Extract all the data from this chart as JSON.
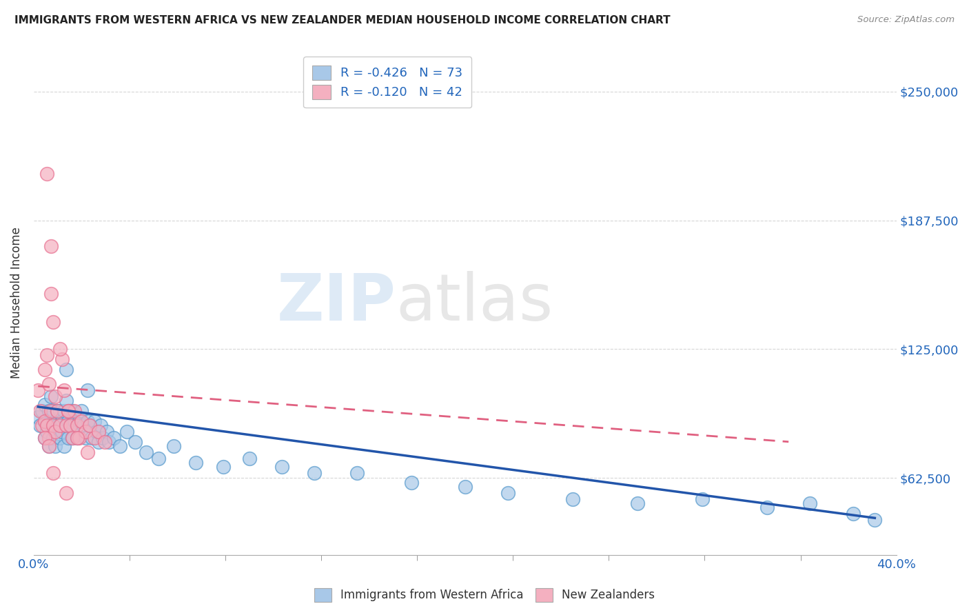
{
  "title": "IMMIGRANTS FROM WESTERN AFRICA VS NEW ZEALANDER MEDIAN HOUSEHOLD INCOME CORRELATION CHART",
  "source": "Source: ZipAtlas.com",
  "ylabel": "Median Household Income",
  "ytick_labels": [
    "$62,500",
    "$125,000",
    "$187,500",
    "$250,000"
  ],
  "ytick_values": [
    62500,
    125000,
    187500,
    250000
  ],
  "ylim": [
    25000,
    270000
  ],
  "xlim": [
    0.0,
    0.4
  ],
  "watermark_zip": "ZIP",
  "watermark_atlas": "atlas",
  "legend_r1": "R = -0.426",
  "legend_n1": "N = 73",
  "legend_r2": "R = -0.120",
  "legend_n2": "N = 42",
  "blue_color": "#a8c8e8",
  "pink_color": "#f4b0c0",
  "blue_edge_color": "#5599cc",
  "pink_edge_color": "#e87090",
  "blue_line_color": "#2255aa",
  "pink_line_color": "#e06080",
  "background_color": "#ffffff",
  "scatter_blue_x": [
    0.002,
    0.003,
    0.004,
    0.005,
    0.005,
    0.006,
    0.006,
    0.007,
    0.007,
    0.008,
    0.008,
    0.009,
    0.009,
    0.01,
    0.01,
    0.011,
    0.011,
    0.012,
    0.012,
    0.013,
    0.013,
    0.014,
    0.014,
    0.015,
    0.015,
    0.016,
    0.016,
    0.017,
    0.017,
    0.018,
    0.018,
    0.019,
    0.02,
    0.02,
    0.021,
    0.022,
    0.023,
    0.024,
    0.025,
    0.026,
    0.027,
    0.028,
    0.029,
    0.03,
    0.031,
    0.032,
    0.034,
    0.035,
    0.037,
    0.04,
    0.043,
    0.047,
    0.052,
    0.058,
    0.065,
    0.075,
    0.088,
    0.1,
    0.115,
    0.13,
    0.15,
    0.175,
    0.2,
    0.22,
    0.25,
    0.28,
    0.31,
    0.34,
    0.36,
    0.38,
    0.39,
    0.015,
    0.025
  ],
  "scatter_blue_y": [
    92000,
    88000,
    95000,
    82000,
    98000,
    90000,
    85000,
    95000,
    78000,
    102000,
    88000,
    82000,
    95000,
    90000,
    78000,
    95000,
    88000,
    82000,
    95000,
    90000,
    85000,
    78000,
    95000,
    88000,
    100000,
    82000,
    90000,
    95000,
    88000,
    82000,
    95000,
    90000,
    88000,
    82000,
    90000,
    95000,
    88000,
    82000,
    90000,
    88000,
    82000,
    90000,
    85000,
    80000,
    88000,
    82000,
    85000,
    80000,
    82000,
    78000,
    85000,
    80000,
    75000,
    72000,
    78000,
    70000,
    68000,
    72000,
    68000,
    65000,
    65000,
    60000,
    58000,
    55000,
    52000,
    50000,
    52000,
    48000,
    50000,
    45000,
    42000,
    115000,
    105000
  ],
  "scatter_pink_x": [
    0.002,
    0.003,
    0.004,
    0.005,
    0.005,
    0.006,
    0.006,
    0.007,
    0.007,
    0.008,
    0.008,
    0.009,
    0.009,
    0.01,
    0.01,
    0.011,
    0.012,
    0.013,
    0.014,
    0.015,
    0.016,
    0.017,
    0.018,
    0.019,
    0.02,
    0.021,
    0.022,
    0.024,
    0.026,
    0.028,
    0.03,
    0.033,
    0.006,
    0.008,
    0.012,
    0.016,
    0.02,
    0.025,
    0.005,
    0.007,
    0.009,
    0.015
  ],
  "scatter_pink_y": [
    105000,
    95000,
    88000,
    115000,
    90000,
    122000,
    88000,
    108000,
    82000,
    175000,
    95000,
    138000,
    88000,
    102000,
    85000,
    95000,
    88000,
    120000,
    105000,
    88000,
    95000,
    88000,
    82000,
    95000,
    88000,
    82000,
    90000,
    85000,
    88000,
    82000,
    85000,
    80000,
    210000,
    152000,
    125000,
    95000,
    82000,
    75000,
    82000,
    78000,
    65000,
    55000
  ],
  "blue_line_x": [
    0.002,
    0.39
  ],
  "blue_line_y": [
    97000,
    43000
  ],
  "pink_line_x": [
    0.002,
    0.35
  ],
  "pink_line_y": [
    107000,
    80000
  ]
}
